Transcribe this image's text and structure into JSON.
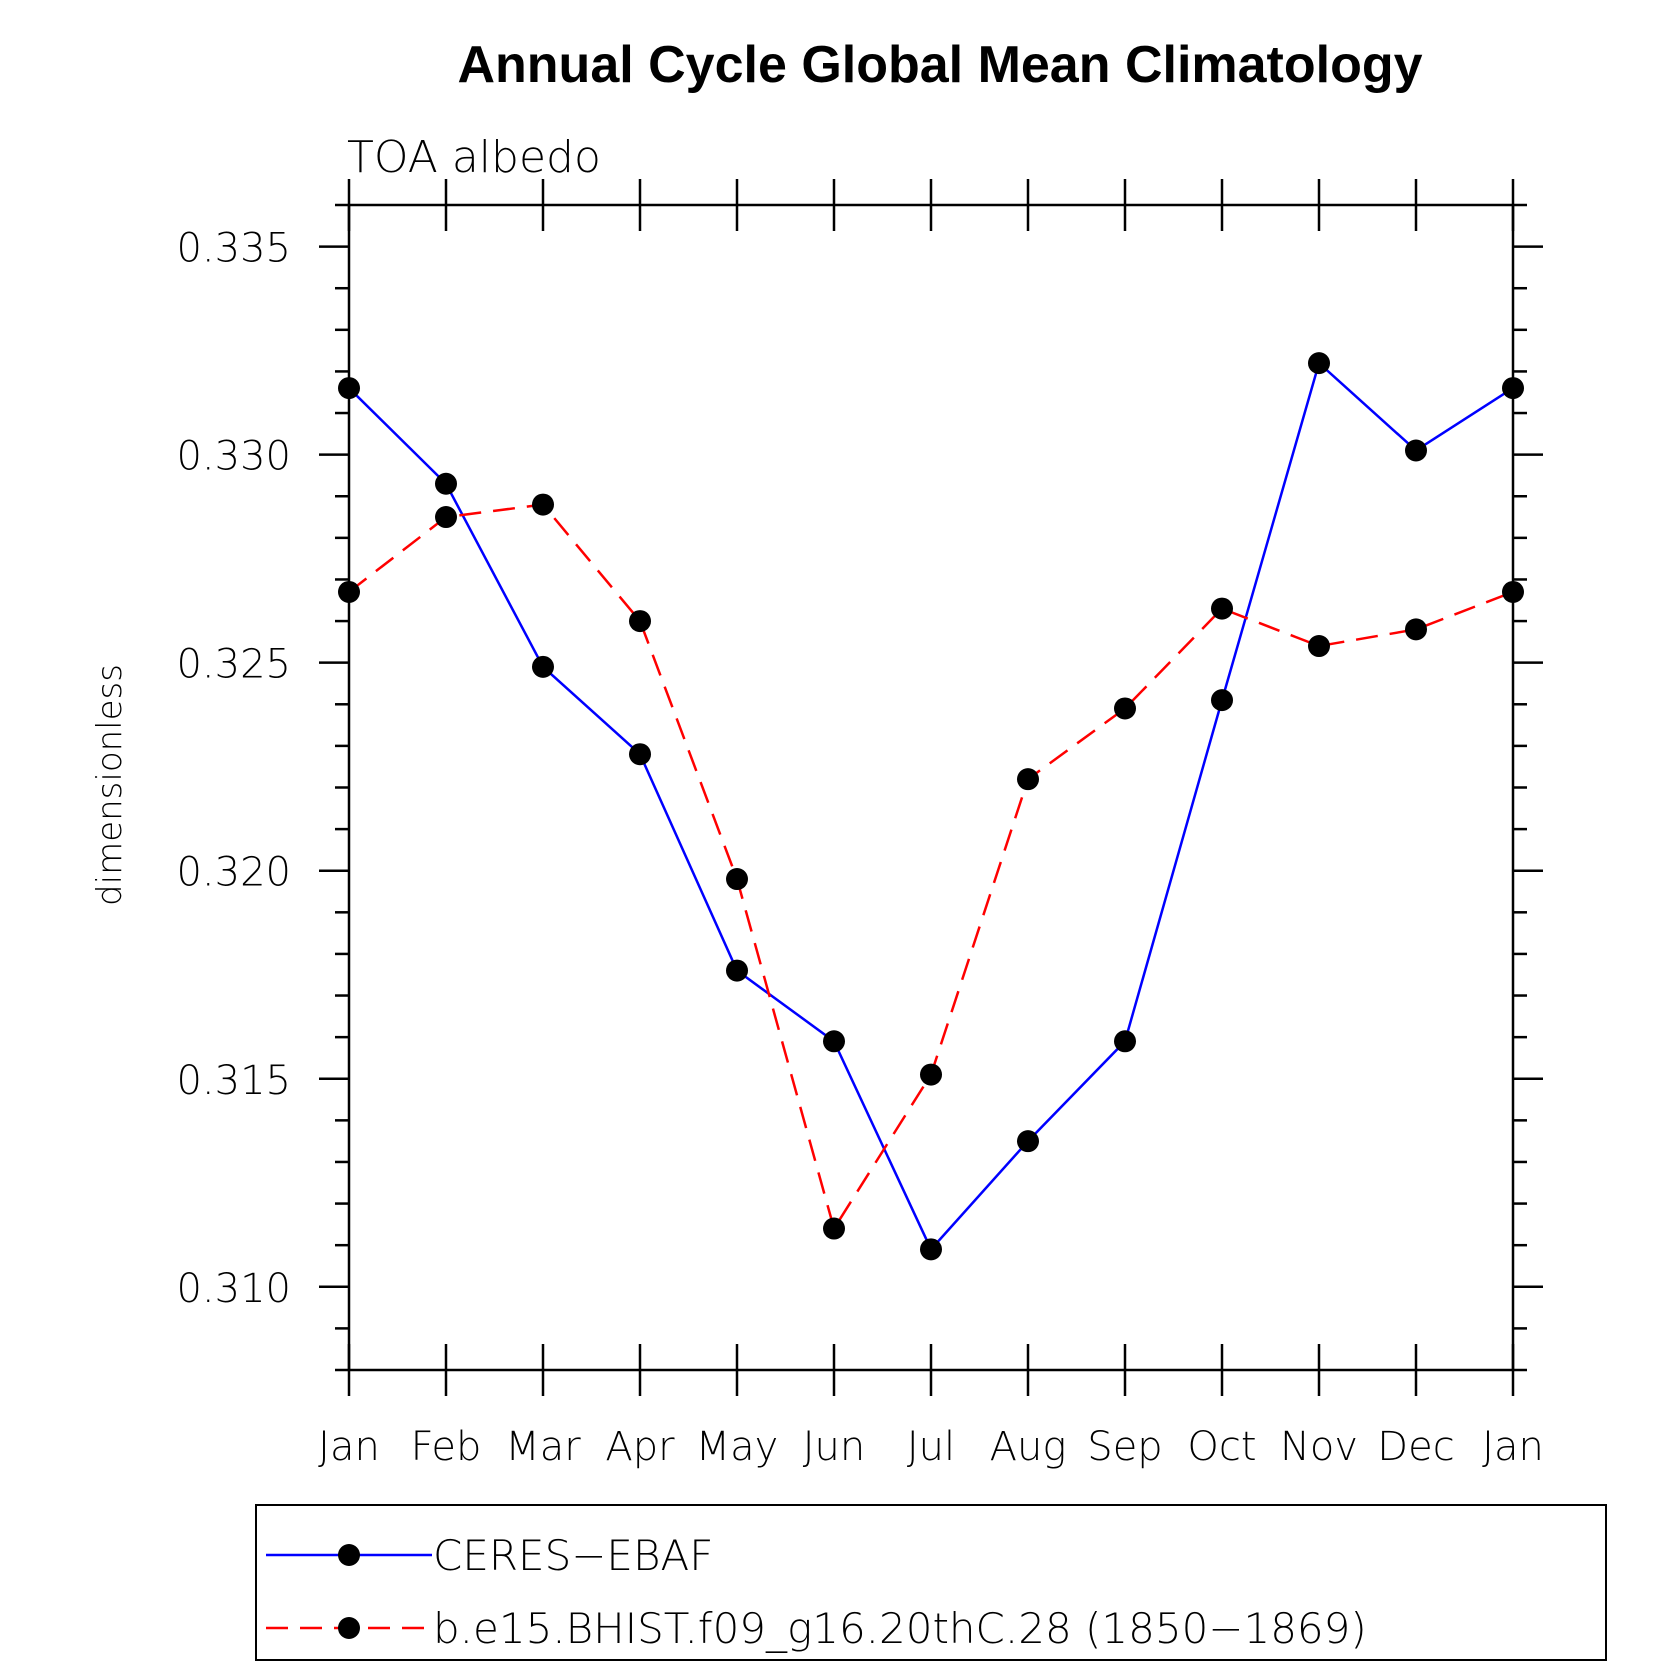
{
  "chart_data": {
    "type": "line",
    "title": "Annual Cycle Global Mean Climatology",
    "subtitle": "TOA albedo",
    "xlabel": "",
    "ylabel": "dimensionless",
    "categories": [
      "Jan",
      "Feb",
      "Mar",
      "Apr",
      "May",
      "Jun",
      "Jul",
      "Aug",
      "Sep",
      "Oct",
      "Nov",
      "Dec",
      "Jan"
    ],
    "ylim": [
      0.308,
      0.336
    ],
    "yticks": [
      "0.310",
      "0.315",
      "0.320",
      "0.325",
      "0.330",
      "0.335"
    ],
    "ytick_values": [
      0.31,
      0.315,
      0.32,
      0.325,
      0.33,
      0.335
    ],
    "ytick_minor_step": 0.001,
    "grid": false,
    "legend_position": "bottom",
    "series": [
      {
        "name": "CERES−EBAF",
        "color": "#0000ff",
        "dash": "solid",
        "marker_color": "#000000",
        "values": [
          0.3316,
          0.3293,
          0.3249,
          0.3228,
          0.3176,
          0.3159,
          0.3109,
          0.3135,
          0.3159,
          0.3241,
          0.3322,
          0.3301,
          0.3316
        ]
      },
      {
        "name": "b.e15.BHIST.f09_g16.20thC.28 (1850−1869)",
        "color": "#ff0000",
        "dash": "dashed",
        "marker_color": "#000000",
        "values": [
          0.3267,
          0.3285,
          0.3288,
          0.326,
          0.3198,
          0.3114,
          0.3151,
          0.3222,
          0.3239,
          0.3263,
          0.3254,
          0.3258,
          0.3267
        ]
      }
    ]
  }
}
